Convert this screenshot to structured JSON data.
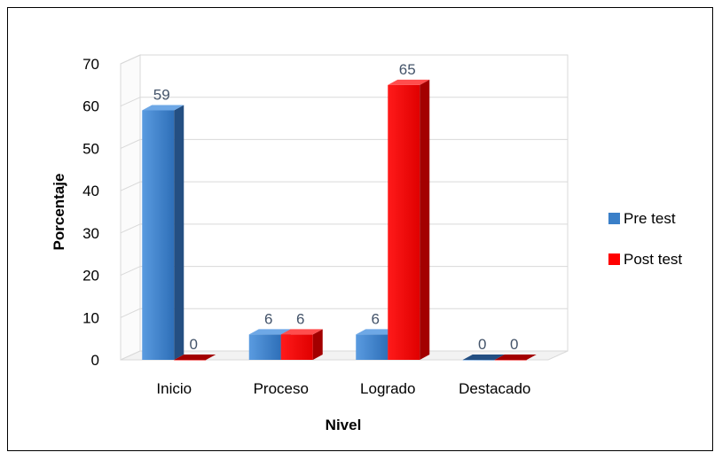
{
  "chart_data": {
    "type": "bar",
    "title": "",
    "xlabel": "Nivel",
    "ylabel": "Porcentaje",
    "categories": [
      "Inicio",
      "Proceso",
      "Logrado",
      "Destacado"
    ],
    "ylim": [
      0,
      70
    ],
    "yticks": [
      0,
      10,
      20,
      30,
      40,
      50,
      60,
      70
    ],
    "grid": true,
    "legend_position": "right",
    "series": [
      {
        "name": "Pre test",
        "values": [
          59,
          6,
          6,
          0
        ],
        "color": "#3a7fc8"
      },
      {
        "name": "Post test",
        "values": [
          0,
          6,
          65,
          0
        ],
        "color": "#ff0000"
      }
    ]
  }
}
